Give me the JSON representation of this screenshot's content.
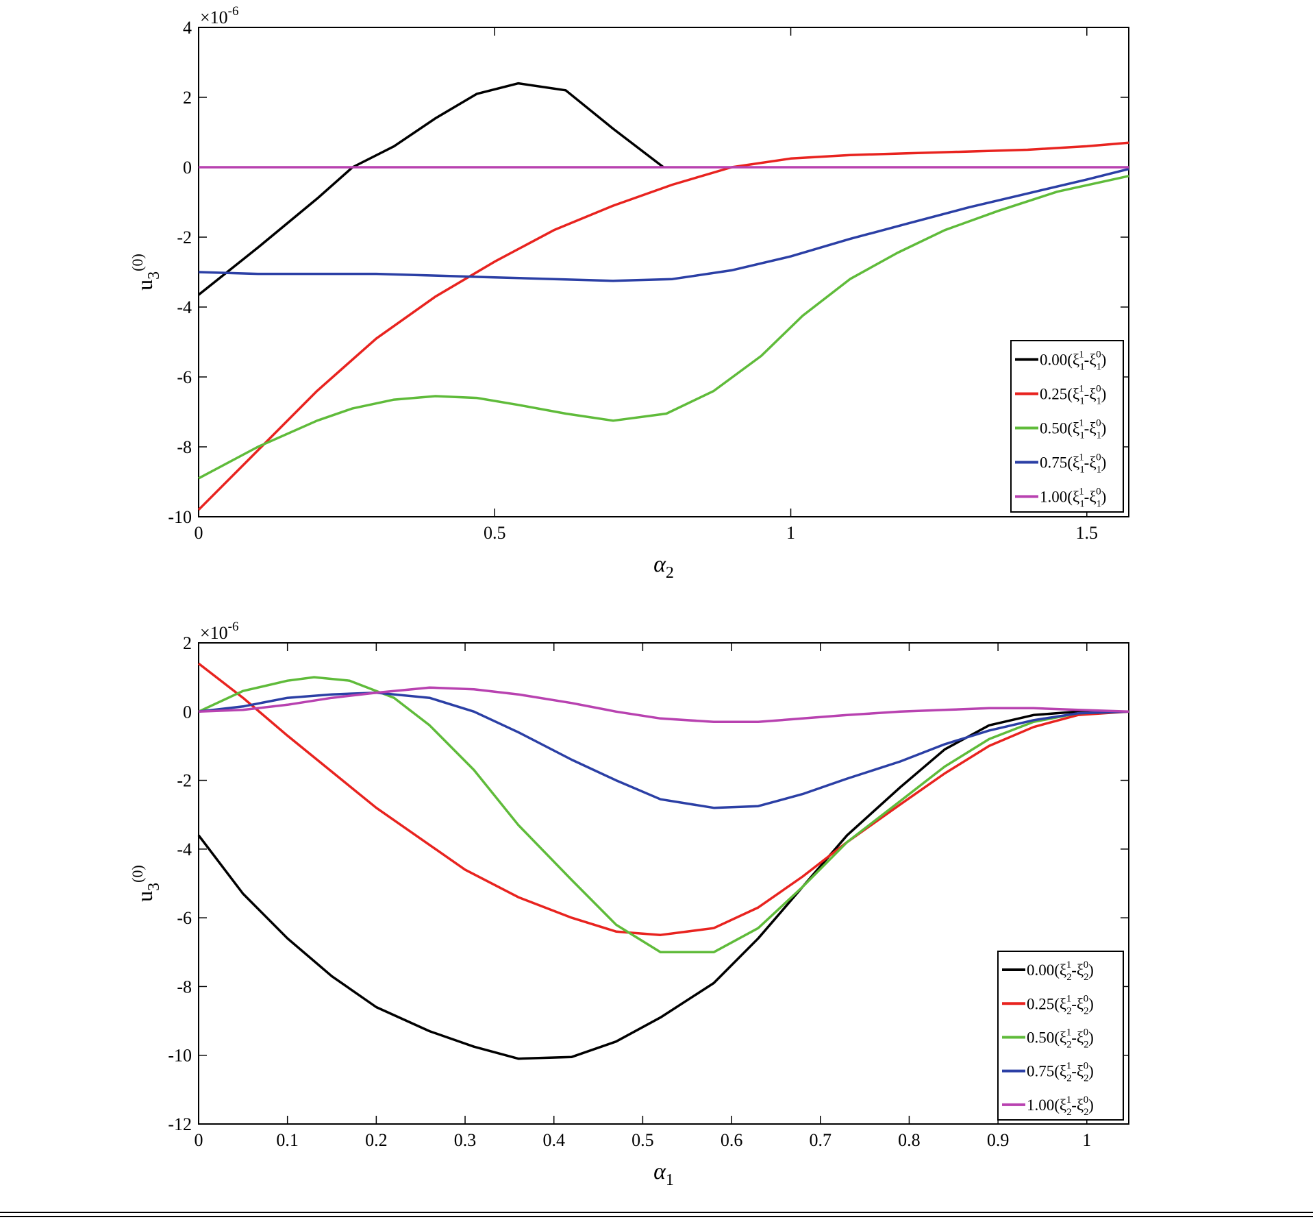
{
  "chart_data": [
    {
      "type": "line",
      "id": "top",
      "xlabel": "α",
      "xlabel_sub": "2",
      "ylabel": "u",
      "ylabel_sub": "3",
      "ylabel_sup": "(0)",
      "exponent": "×10",
      "exponent_power": "-6",
      "xlim": [
        0,
        1.5708
      ],
      "ylim": [
        -10,
        4
      ],
      "xticks": [
        0,
        0.5,
        1,
        1.5
      ],
      "xtick_labels": [
        "0",
        "0.5",
        "1",
        "1.5"
      ],
      "yticks": [
        4,
        2,
        0,
        -2,
        -4,
        -6,
        -8,
        -10
      ],
      "ytick_labels": [
        "4",
        "2",
        "0",
        "-2",
        "-4",
        "-6",
        "-8",
        "-10"
      ],
      "legend_position": "bottom-right",
      "series": [
        {
          "name": "0.00(ξ1¹-ξ1⁰)",
          "coef": "0.00(",
          "xi": "ξ",
          "sub": "1",
          "sup1": "1",
          "sup0": "0",
          "minus": "-",
          "close": ")",
          "color": "#000000",
          "x": [
            0,
            0.1,
            0.2,
            0.26,
            0.33,
            0.4,
            0.47,
            0.54,
            0.62,
            0.7,
            0.785
          ],
          "y": [
            -3.65,
            -2.3,
            -0.9,
            0,
            0.6,
            1.4,
            2.1,
            2.4,
            2.2,
            1.1,
            0
          ]
        },
        {
          "name": "0.25(ξ1¹-ξ1⁰)",
          "coef": "0.25(",
          "xi": "ξ",
          "sub": "1",
          "sup1": "1",
          "sup0": "0",
          "minus": "-",
          "close": ")",
          "color": "#e8231f",
          "x": [
            0,
            0.1,
            0.2,
            0.3,
            0.4,
            0.5,
            0.6,
            0.7,
            0.8,
            0.9,
            1.0,
            1.1,
            1.2,
            1.3,
            1.4,
            1.5,
            1.5708
          ],
          "y": [
            -9.8,
            -8.1,
            -6.4,
            -4.9,
            -3.7,
            -2.7,
            -1.8,
            -1.1,
            -0.5,
            0.0,
            0.25,
            0.35,
            0.4,
            0.45,
            0.5,
            0.6,
            0.7
          ]
        },
        {
          "name": "0.50(ξ1¹-ξ1⁰)",
          "coef": "0.50(",
          "xi": "ξ",
          "sub": "1",
          "sup1": "1",
          "sup0": "0",
          "minus": "-",
          "close": ")",
          "color": "#5fbb3a",
          "x": [
            0,
            0.1,
            0.2,
            0.26,
            0.33,
            0.4,
            0.47,
            0.54,
            0.62,
            0.7,
            0.79,
            0.87,
            0.95,
            1.02,
            1.1,
            1.18,
            1.26,
            1.35,
            1.45,
            1.5708
          ],
          "y": [
            -8.9,
            -8.0,
            -7.25,
            -6.9,
            -6.65,
            -6.55,
            -6.6,
            -6.8,
            -7.05,
            -7.25,
            -7.05,
            -6.4,
            -5.4,
            -4.25,
            -3.2,
            -2.45,
            -1.8,
            -1.25,
            -0.7,
            -0.25
          ]
        },
        {
          "name": "0.75(ξ1¹-ξ1⁰)",
          "coef": "0.75(",
          "xi": "ξ",
          "sub": "1",
          "sup1": "1",
          "sup0": "0",
          "minus": "-",
          "close": ")",
          "color": "#2b3fa5",
          "x": [
            0,
            0.1,
            0.2,
            0.3,
            0.4,
            0.5,
            0.6,
            0.7,
            0.8,
            0.9,
            1.0,
            1.1,
            1.2,
            1.3,
            1.4,
            1.5,
            1.5708
          ],
          "y": [
            -3.0,
            -3.05,
            -3.05,
            -3.05,
            -3.1,
            -3.15,
            -3.2,
            -3.25,
            -3.2,
            -2.95,
            -2.55,
            -2.05,
            -1.6,
            -1.15,
            -0.75,
            -0.35,
            -0.05
          ]
        },
        {
          "name": "1.00(ξ1¹-ξ1⁰)",
          "coef": "1.00(",
          "xi": "ξ",
          "sub": "1",
          "sup1": "1",
          "sup0": "0",
          "minus": "-",
          "close": ")",
          "color": "#b842b0",
          "x": [
            0,
            1.5708
          ],
          "y": [
            0,
            0
          ]
        }
      ]
    },
    {
      "type": "line",
      "id": "bottom",
      "xlabel": "α",
      "xlabel_sub": "1",
      "ylabel": "u",
      "ylabel_sub": "3",
      "ylabel_sup": "(0)",
      "exponent": "×10",
      "exponent_power": "-6",
      "xlim": [
        0,
        1.0472
      ],
      "ylim": [
        -12,
        2
      ],
      "xticks": [
        0,
        0.1,
        0.2,
        0.3,
        0.4,
        0.5,
        0.6,
        0.7,
        0.8,
        0.9,
        1
      ],
      "xtick_labels": [
        "0",
        "0.1",
        "0.2",
        "0.3",
        "0.4",
        "0.5",
        "0.6",
        "0.7",
        "0.8",
        "0.9",
        "1"
      ],
      "yticks": [
        2,
        0,
        -2,
        -4,
        -6,
        -8,
        -10,
        -12
      ],
      "ytick_labels": [
        "2",
        "0",
        "-2",
        "-4",
        "-6",
        "-8",
        "-10",
        "-12"
      ],
      "legend_position": "bottom-right",
      "series": [
        {
          "name": "0.00(ξ2¹-ξ2⁰)",
          "coef": "0.00(",
          "xi": "ξ",
          "sub": "2",
          "sup1": "1",
          "sup0": "0",
          "minus": "-",
          "close": ")",
          "color": "#000000",
          "x": [
            0,
            0.05,
            0.1,
            0.15,
            0.2,
            0.26,
            0.31,
            0.36,
            0.42,
            0.47,
            0.52,
            0.58,
            0.63,
            0.68,
            0.73,
            0.79,
            0.84,
            0.89,
            0.94,
            0.99,
            1.0472
          ],
          "y": [
            -3.6,
            -5.3,
            -6.6,
            -7.7,
            -8.6,
            -9.3,
            -9.75,
            -10.1,
            -10.05,
            -9.6,
            -8.9,
            -7.9,
            -6.6,
            -5.1,
            -3.6,
            -2.2,
            -1.1,
            -0.4,
            -0.1,
            0.0,
            0.0
          ]
        },
        {
          "name": "0.25(ξ2¹-ξ2⁰)",
          "coef": "0.25(",
          "xi": "ξ",
          "sub": "2",
          "sup1": "1",
          "sup0": "0",
          "minus": "-",
          "close": ")",
          "color": "#e8231f",
          "x": [
            0,
            0.05,
            0.1,
            0.2,
            0.3,
            0.36,
            0.42,
            0.47,
            0.52,
            0.58,
            0.63,
            0.68,
            0.73,
            0.79,
            0.84,
            0.89,
            0.94,
            0.99,
            1.0472
          ],
          "y": [
            1.4,
            0.4,
            -0.7,
            -2.8,
            -4.6,
            -5.4,
            -6.0,
            -6.4,
            -6.5,
            -6.3,
            -5.7,
            -4.8,
            -3.8,
            -2.7,
            -1.8,
            -1.0,
            -0.45,
            -0.1,
            0.0
          ]
        },
        {
          "name": "0.50(ξ2¹-ξ2⁰)",
          "coef": "0.50(",
          "xi": "ξ",
          "sub": "2",
          "sup1": "1",
          "sup0": "0",
          "minus": "-",
          "close": ")",
          "color": "#5fbb3a",
          "x": [
            0,
            0.05,
            0.1,
            0.13,
            0.17,
            0.22,
            0.26,
            0.31,
            0.36,
            0.42,
            0.47,
            0.52,
            0.58,
            0.63,
            0.68,
            0.73,
            0.79,
            0.84,
            0.89,
            0.94,
            0.99,
            1.0472
          ],
          "y": [
            0.0,
            0.6,
            0.9,
            1.0,
            0.9,
            0.4,
            -0.4,
            -1.7,
            -3.3,
            -4.9,
            -6.2,
            -7.0,
            -7.0,
            -6.3,
            -5.1,
            -3.8,
            -2.6,
            -1.6,
            -0.8,
            -0.3,
            -0.05,
            0.0
          ]
        },
        {
          "name": "0.75(ξ2¹-ξ2⁰)",
          "coef": "0.75(",
          "xi": "ξ",
          "sub": "2",
          "sup1": "1",
          "sup0": "0",
          "minus": "-",
          "close": ")",
          "color": "#2b3fa5",
          "x": [
            0,
            0.05,
            0.1,
            0.15,
            0.2,
            0.26,
            0.31,
            0.36,
            0.42,
            0.47,
            0.52,
            0.58,
            0.63,
            0.68,
            0.73,
            0.79,
            0.84,
            0.89,
            0.94,
            0.99,
            1.0472
          ],
          "y": [
            0.0,
            0.15,
            0.4,
            0.5,
            0.55,
            0.4,
            0.0,
            -0.6,
            -1.4,
            -2.0,
            -2.55,
            -2.8,
            -2.75,
            -2.4,
            -1.95,
            -1.45,
            -0.95,
            -0.55,
            -0.25,
            -0.05,
            0.0
          ]
        },
        {
          "name": "1.00(ξ2¹-ξ2⁰)",
          "coef": "1.00(",
          "xi": "ξ",
          "sub": "2",
          "sup1": "1",
          "sup0": "0",
          "minus": "-",
          "close": ")",
          "color": "#b842b0",
          "x": [
            0,
            0.05,
            0.1,
            0.15,
            0.2,
            0.26,
            0.31,
            0.36,
            0.42,
            0.47,
            0.52,
            0.58,
            0.63,
            0.68,
            0.73,
            0.79,
            0.84,
            0.89,
            0.94,
            0.99,
            1.0472
          ],
          "y": [
            0.0,
            0.05,
            0.2,
            0.4,
            0.55,
            0.7,
            0.65,
            0.5,
            0.25,
            0.0,
            -0.2,
            -0.3,
            -0.3,
            -0.2,
            -0.1,
            0.0,
            0.05,
            0.1,
            0.1,
            0.05,
            0.0
          ]
        }
      ]
    }
  ]
}
